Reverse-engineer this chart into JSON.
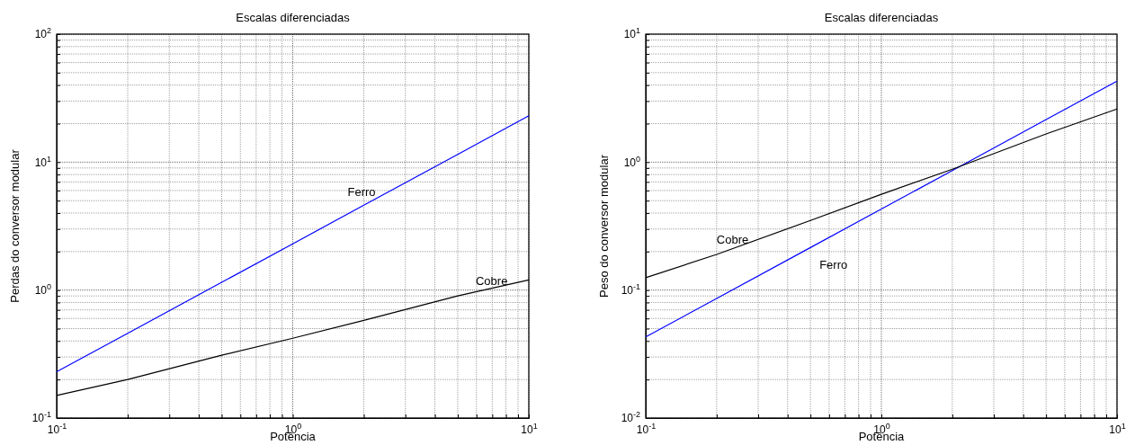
{
  "chart_data": [
    {
      "type": "line",
      "title": "Escalas diferenciadas",
      "xlabel": "Potência",
      "ylabel": "Perdas do conversor modular",
      "log": "xy",
      "grid": true,
      "x": [
        0.1,
        0.2,
        0.5,
        1,
        2,
        5,
        10
      ],
      "series": [
        {
          "name": "Ferro",
          "color": "#0000ff",
          "values": [
            0.23,
            0.46,
            1.15,
            2.3,
            4.6,
            11.5,
            23
          ]
        },
        {
          "name": "Cobre",
          "color": "#000000",
          "values": [
            0.15,
            0.2,
            0.31,
            0.42,
            0.58,
            0.9,
            1.2
          ]
        }
      ],
      "xlim": [
        0.1,
        10
      ],
      "ylim": [
        0.1,
        100
      ],
      "xticks": [
        {
          "value": 0.1,
          "label": "10$^{-1}$"
        },
        {
          "value": 0.2,
          "label": null
        },
        {
          "value": 0.3,
          "label": null
        },
        {
          "value": 0.4,
          "label": null
        },
        {
          "value": 0.5,
          "label": null
        },
        {
          "value": 0.6,
          "label": null
        },
        {
          "value": 0.7,
          "label": null
        },
        {
          "value": 0.8,
          "label": null
        },
        {
          "value": 0.9,
          "label": null
        },
        {
          "value": 1,
          "label": "10$^{0}$"
        },
        {
          "value": 2,
          "label": null
        },
        {
          "value": 3,
          "label": null
        },
        {
          "value": 4,
          "label": null
        },
        {
          "value": 5,
          "label": null
        },
        {
          "value": 6,
          "label": null
        },
        {
          "value": 7,
          "label": null
        },
        {
          "value": 8,
          "label": null
        },
        {
          "value": 9,
          "label": null
        },
        {
          "value": 10,
          "label": "10$^{1}$"
        }
      ],
      "yticks": [
        {
          "value": 0.1,
          "label": "10$^{-1}$"
        },
        {
          "value": 0.2,
          "label": null
        },
        {
          "value": 0.3,
          "label": null
        },
        {
          "value": 0.4,
          "label": null
        },
        {
          "value": 0.5,
          "label": null
        },
        {
          "value": 0.6,
          "label": null
        },
        {
          "value": 0.7,
          "label": null
        },
        {
          "value": 0.8,
          "label": null
        },
        {
          "value": 0.9,
          "label": null
        },
        {
          "value": 1,
          "label": "10$^{0}$"
        },
        {
          "value": 2,
          "label": null
        },
        {
          "value": 3,
          "label": null
        },
        {
          "value": 4,
          "label": null
        },
        {
          "value": 5,
          "label": null
        },
        {
          "value": 6,
          "label": null
        },
        {
          "value": 7,
          "label": null
        },
        {
          "value": 8,
          "label": null
        },
        {
          "value": 9,
          "label": null
        },
        {
          "value": 10,
          "label": "10$^{1}$"
        },
        {
          "value": 20,
          "label": null
        },
        {
          "value": 30,
          "label": null
        },
        {
          "value": 40,
          "label": null
        },
        {
          "value": 50,
          "label": null
        },
        {
          "value": 60,
          "label": null
        },
        {
          "value": 70,
          "label": null
        },
        {
          "value": 80,
          "label": null
        },
        {
          "value": 90,
          "label": null
        },
        {
          "value": 100,
          "label": "10$^{2}$"
        }
      ]
    },
    {
      "type": "line",
      "title": "Escalas diferenciadas",
      "xlabel": "Potência",
      "ylabel": "Peso do conversor modular",
      "log": "xy",
      "grid": true,
      "x": [
        0.1,
        0.2,
        0.5,
        1,
        2,
        5,
        10
      ],
      "series": [
        {
          "name": "Ferro",
          "color": "#0000ff",
          "values": [
            0.043,
            0.086,
            0.215,
            0.43,
            0.86,
            2.15,
            4.3
          ]
        },
        {
          "name": "Cobre",
          "color": "#000000",
          "values": [
            0.125,
            0.19,
            0.35,
            0.56,
            0.88,
            1.66,
            2.6
          ]
        }
      ],
      "xlim": [
        0.1,
        10
      ],
      "ylim": [
        0.01,
        10
      ],
      "xticks": [
        {
          "value": 0.1,
          "label": "10$^{-1}$"
        },
        {
          "value": 0.2,
          "label": null
        },
        {
          "value": 0.3,
          "label": null
        },
        {
          "value": 0.4,
          "label": null
        },
        {
          "value": 0.5,
          "label": null
        },
        {
          "value": 0.6,
          "label": null
        },
        {
          "value": 0.7,
          "label": null
        },
        {
          "value": 0.8,
          "label": null
        },
        {
          "value": 0.9,
          "label": null
        },
        {
          "value": 1,
          "label": "10$^{0}$"
        },
        {
          "value": 2,
          "label": null
        },
        {
          "value": 3,
          "label": null
        },
        {
          "value": 4,
          "label": null
        },
        {
          "value": 5,
          "label": null
        },
        {
          "value": 6,
          "label": null
        },
        {
          "value": 7,
          "label": null
        },
        {
          "value": 8,
          "label": null
        },
        {
          "value": 9,
          "label": null
        },
        {
          "value": 10,
          "label": "10$^{1}$"
        }
      ],
      "yticks": [
        {
          "value": 0.01,
          "label": "10$^{-2}$"
        },
        {
          "value": 0.02,
          "label": null
        },
        {
          "value": 0.03,
          "label": null
        },
        {
          "value": 0.04,
          "label": null
        },
        {
          "value": 0.05,
          "label": null
        },
        {
          "value": 0.06,
          "label": null
        },
        {
          "value": 0.07,
          "label": null
        },
        {
          "value": 0.08,
          "label": null
        },
        {
          "value": 0.09,
          "label": null
        },
        {
          "value": 0.1,
          "label": "10$^{-1}$"
        },
        {
          "value": 0.2,
          "label": null
        },
        {
          "value": 0.3,
          "label": null
        },
        {
          "value": 0.4,
          "label": null
        },
        {
          "value": 0.5,
          "label": null
        },
        {
          "value": 0.6,
          "label": null
        },
        {
          "value": 0.7,
          "label": null
        },
        {
          "value": 0.8,
          "label": null
        },
        {
          "value": 0.9,
          "label": null
        },
        {
          "value": 1,
          "label": "10$^{0}$"
        },
        {
          "value": 2,
          "label": null
        },
        {
          "value": 3,
          "label": null
        },
        {
          "value": 4,
          "label": null
        },
        {
          "value": 5,
          "label": null
        },
        {
          "value": 6,
          "label": null
        },
        {
          "value": 7,
          "label": null
        },
        {
          "value": 8,
          "label": null
        },
        {
          "value": 9,
          "label": null
        },
        {
          "value": 10,
          "label": "10$^{1}$"
        }
      ]
    }
  ]
}
